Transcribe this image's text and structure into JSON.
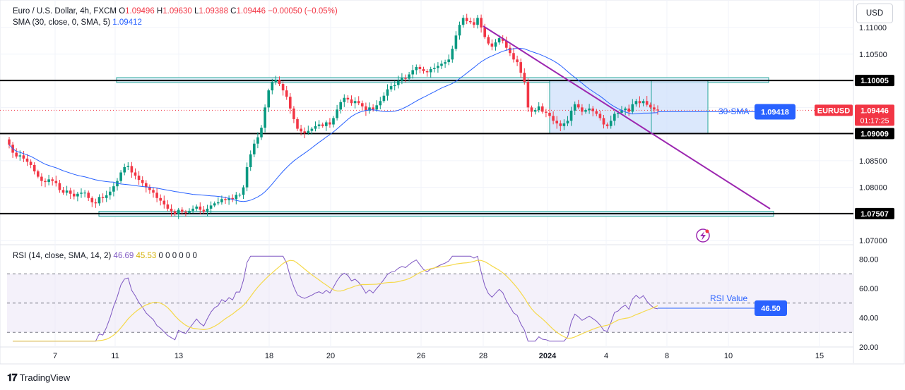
{
  "header": {
    "title": "Euro / U.S. Dollar, 4h, FXCM",
    "ohlc": [
      {
        "k": "O",
        "v": "1.09496"
      },
      {
        "k": "H",
        "v": "1.09630"
      },
      {
        "k": "L",
        "v": "1.09388"
      },
      {
        "k": "C",
        "v": "1.09446"
      }
    ],
    "change": "−0.00050 (−0.05%)",
    "sma_label": "SMA (30, close, 0, SMA, 5)",
    "sma_value": "1.09412",
    "rsi_label": "RSI (14, close, SMA, 14, 2)",
    "rsi_value": "46.69",
    "rsi_sma_value": "45.53",
    "rsi_zeros": "0 0 0 0 0 0"
  },
  "currency_button": "USD",
  "branding": "TradingView",
  "colors": {
    "up": "#089981",
    "down": "#f23645",
    "sma": "#2962ff",
    "trendline": "#9c27b0",
    "rsi": "#7e57c2",
    "rsi_ma": "#f5d94a",
    "zone_fill": "#cfe0fb"
  },
  "chart_data": {
    "type": "candlestick",
    "symbol": "EURUSD",
    "ylim": [
      1.0695,
      1.1145
    ],
    "price_ticks": [
      "1.11000",
      "1.10500",
      "1.10000",
      "1.09500",
      "1.09000",
      "1.08500",
      "1.08000",
      "1.07500",
      "1.07000"
    ],
    "x_ticks": [
      "7",
      "11",
      "13",
      "18",
      "20",
      "26",
      "28",
      "2024",
      "4",
      "8",
      "10",
      "15"
    ],
    "levels": [
      {
        "label": "1.10005",
        "value": 1.10005
      },
      {
        "label": "1.09009",
        "value": 1.09009
      },
      {
        "label": "1.07507",
        "value": 1.07507
      }
    ],
    "last_price": {
      "label": "EURUSD",
      "value": "1.09446",
      "countdown": "01:17:25"
    },
    "sma_annotation": {
      "text": "30-SMA",
      "value": "1.09418"
    },
    "close_series": [
      1.088,
      1.0865,
      1.0858,
      1.086,
      1.0854,
      1.0848,
      1.0842,
      1.083,
      1.082,
      1.0812,
      1.081,
      1.0815,
      1.0812,
      1.0808,
      1.0795,
      1.079,
      1.0794,
      1.0788,
      1.0783,
      1.0788,
      1.079,
      1.079,
      1.078,
      1.0772,
      1.077,
      1.0782,
      1.078,
      1.0785,
      1.0792,
      1.0802,
      1.0812,
      1.0828,
      1.0838,
      1.084,
      1.0828,
      1.0822,
      1.0814,
      1.0808,
      1.08,
      1.0795,
      1.079,
      1.078,
      1.0775,
      1.0768,
      1.076,
      1.0755,
      1.075,
      1.0758,
      1.0754,
      1.0752,
      1.0756,
      1.076,
      1.0764,
      1.0758,
      1.0754,
      1.076,
      1.0766,
      1.077,
      1.0772,
      1.0778,
      1.0776,
      1.078,
      1.0778,
      1.0786,
      1.0786,
      1.08,
      1.0838,
      1.0862,
      1.0882,
      1.0894,
      1.0912,
      1.095,
      1.0982,
      1.0998,
      1.1002,
      1.0994,
      1.0982,
      1.097,
      1.0948,
      1.0928,
      1.091,
      1.0905,
      1.0902,
      1.0906,
      1.091,
      1.0915,
      1.0918,
      1.0915,
      1.0922,
      1.0918,
      1.093,
      1.0946,
      1.096,
      1.0968,
      1.0965,
      1.0958,
      1.0962,
      1.0958,
      1.0952,
      1.0944,
      1.095,
      1.0946,
      1.0954,
      1.0962,
      1.0972,
      1.0984,
      1.099,
      1.0992,
      1.1,
      1.1005,
      1.1004,
      1.1012,
      1.102,
      1.1026,
      1.1022,
      1.1018,
      1.1016,
      1.1022,
      1.1024,
      1.1028,
      1.1032,
      1.1035,
      1.104,
      1.106,
      1.1085,
      1.1105,
      1.1118,
      1.1112,
      1.111,
      1.1105,
      1.1118,
      1.11,
      1.1082,
      1.107,
      1.1064,
      1.1072,
      1.108,
      1.1075,
      1.1062,
      1.1052,
      1.104,
      1.1035,
      1.1015,
      1.0998,
      1.095,
      1.0942,
      1.0945,
      1.0952,
      1.0942,
      1.094,
      1.0934,
      1.0925,
      1.092,
      1.0915,
      1.092,
      1.0925,
      1.0944,
      1.0956,
      1.095,
      1.0942,
      1.0945,
      1.0948,
      1.0943,
      1.0938,
      1.093,
      1.0918,
      1.0915,
      1.0925,
      1.0938,
      1.094,
      1.0945,
      1.0948,
      1.0942,
      1.0956,
      1.0962,
      1.0958,
      1.0962,
      1.0955,
      1.095,
      1.0946,
      1.0945
    ]
  },
  "rsi_data": {
    "ylim": [
      20,
      86
    ],
    "ticks": [
      "80.00",
      "60.00",
      "40.00",
      "20.00"
    ],
    "upper": 70,
    "lower": 30,
    "mid": 50,
    "annotation": {
      "text": "RSI Value",
      "value": "46.50"
    }
  }
}
